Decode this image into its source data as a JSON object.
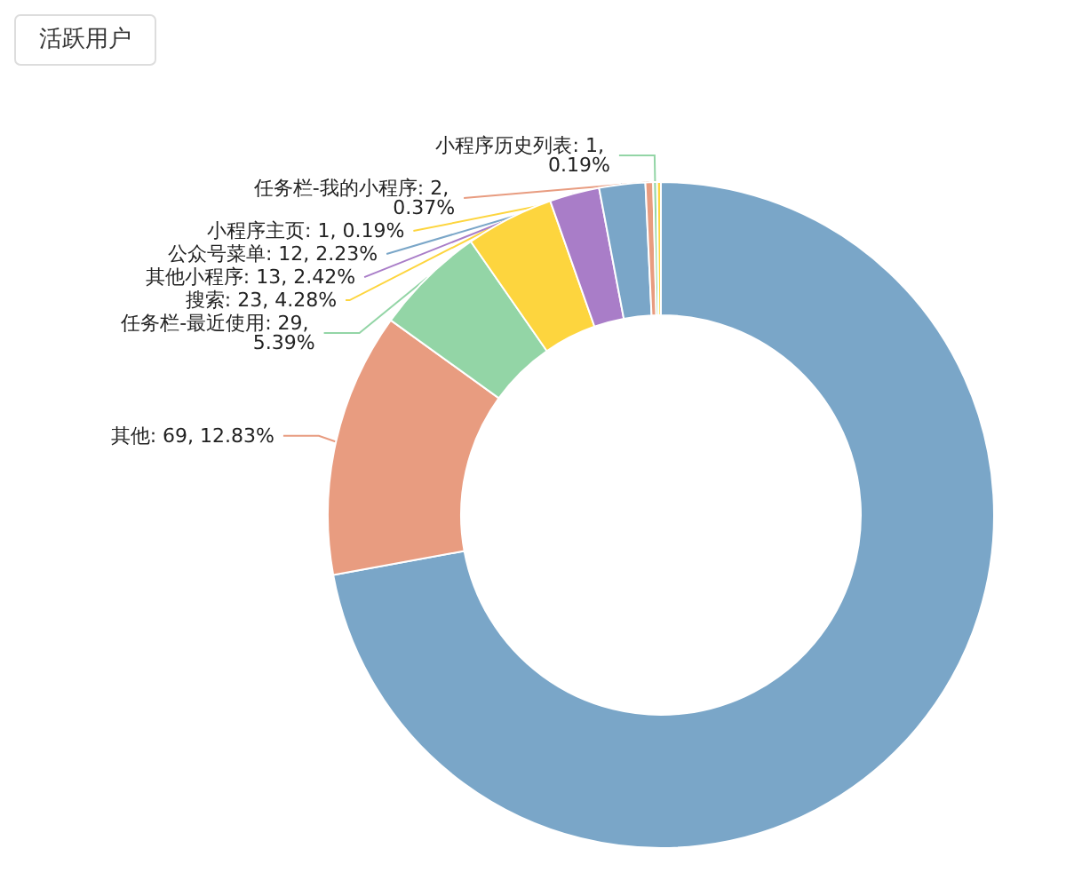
{
  "chart_data": {
    "type": "donut",
    "title": "活跃用户",
    "categories": [
      null,
      "其他",
      "任务栏-最近使用",
      "搜索",
      "其他小程序",
      "公众号菜单",
      "任务栏-我的小程序",
      "小程序历史列表",
      "小程序主页"
    ],
    "values": [
      388,
      69,
      29,
      23,
      13,
      12,
      2,
      1,
      1
    ],
    "value_labels": [
      null,
      "69, 12.83%",
      "29, 5.39%",
      "23, 4.28%",
      "13, 2.42%",
      "12, 2.23%",
      "2, 0.37%",
      "1, 0.19%",
      "1, 0.19%"
    ],
    "colors": [
      "#7aa6c8",
      "#e89c80",
      "#93d5a6",
      "#fdd53e",
      "#a97dc8",
      "#7aa6c8",
      "#e89c80",
      "#93d5a6",
      "#fdd53e"
    ]
  }
}
